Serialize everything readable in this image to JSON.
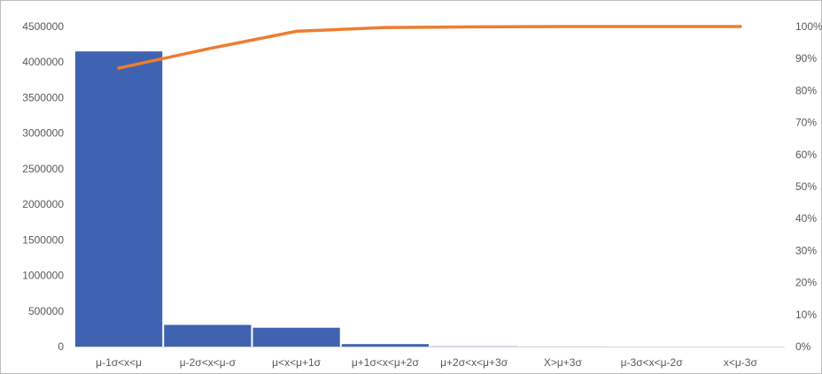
{
  "chart_data": {
    "type": "bar",
    "title": "",
    "xlabel": "",
    "ylabel": "",
    "categories": [
      "μ-1σ<x<μ",
      "μ-2σ<x<μ-σ",
      "μ<x<μ+1σ",
      "μ+1σ<x<μ+2σ",
      "μ+2σ<x<μ+3σ",
      "X>μ+3σ",
      "μ-3σ<x<μ-2σ",
      "x<μ-3σ"
    ],
    "series": [
      {
        "type": "bar",
        "values": [
          4150000,
          305000,
          265000,
          35000,
          3000,
          1000,
          500,
          0
        ],
        "color": "#3F63B1"
      },
      {
        "type": "line",
        "axis": "secondary",
        "values": [
          0.87,
          0.93,
          0.985,
          0.997,
          0.999,
          1.0,
          1.0,
          1.0
        ],
        "color": "#ED7D31"
      }
    ],
    "ylim": [
      0,
      4500000
    ],
    "yticks": [
      "0",
      "500000",
      "1000000",
      "1500000",
      "2000000",
      "2500000",
      "3000000",
      "3500000",
      "4000000",
      "4500000"
    ],
    "y2lim": [
      0,
      1
    ],
    "y2ticks": [
      "0%",
      "10%",
      "20%",
      "30%",
      "40%",
      "50%",
      "60%",
      "70%",
      "80%",
      "90%",
      "100%"
    ],
    "grid": false,
    "legend": "none"
  }
}
